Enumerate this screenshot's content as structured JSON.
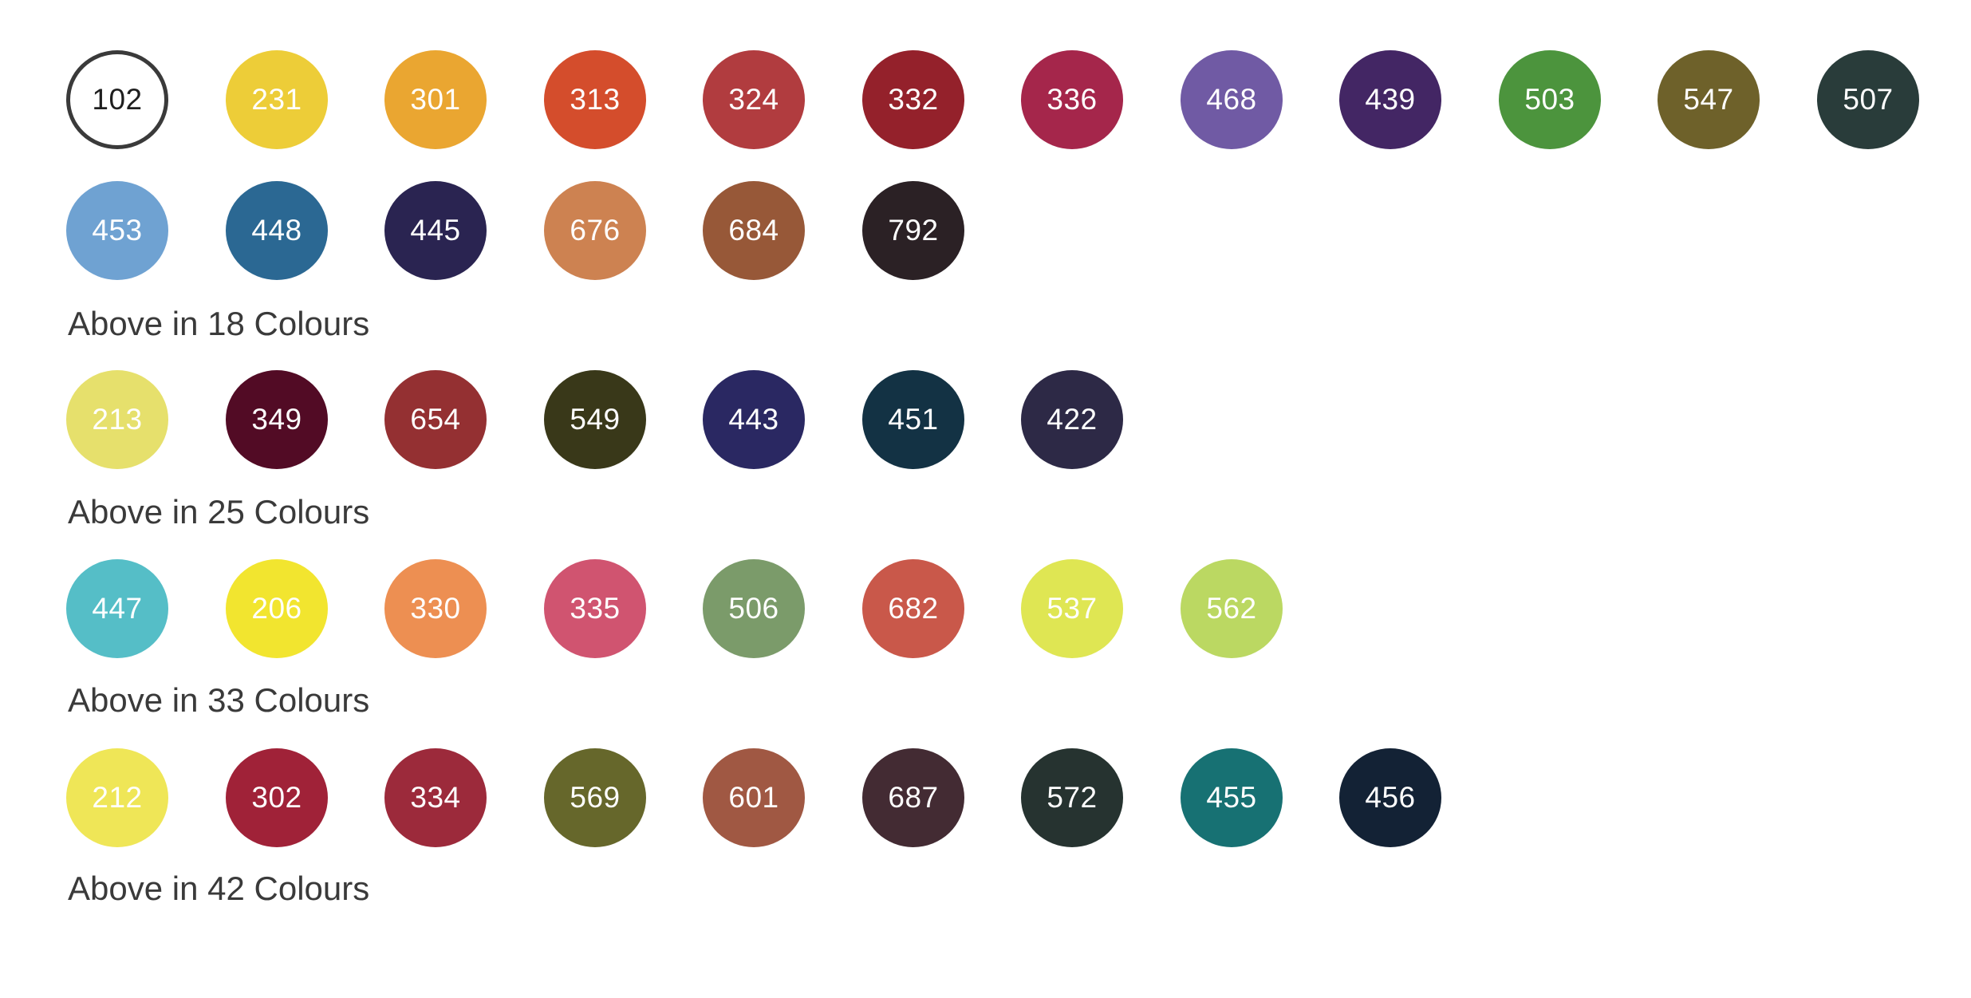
{
  "groups": [
    {
      "caption": "Above in 18 Colours",
      "rows": [
        [
          {
            "code": "102",
            "color": "#ffffff",
            "outlined": true
          },
          {
            "code": "231",
            "color": "#edcd38"
          },
          {
            "code": "301",
            "color": "#eaa631"
          },
          {
            "code": "313",
            "color": "#d44d2c"
          },
          {
            "code": "324",
            "color": "#b13c3f"
          },
          {
            "code": "332",
            "color": "#94212b"
          },
          {
            "code": "336",
            "color": "#a5264b"
          },
          {
            "code": "468",
            "color": "#705aa4"
          },
          {
            "code": "439",
            "color": "#432664"
          },
          {
            "code": "503",
            "color": "#4c943d"
          },
          {
            "code": "547",
            "color": "#6e612a"
          },
          {
            "code": "507",
            "color": "#293c3a"
          }
        ],
        [
          {
            "code": "453",
            "color": "#6fa2d2"
          },
          {
            "code": "448",
            "color": "#2b6893"
          },
          {
            "code": "445",
            "color": "#2a2451"
          },
          {
            "code": "676",
            "color": "#cd8251"
          },
          {
            "code": "684",
            "color": "#975838"
          },
          {
            "code": "792",
            "color": "#2b2125"
          }
        ]
      ]
    },
    {
      "caption": "Above in 25 Colours",
      "rows": [
        [
          {
            "code": "213",
            "color": "#e6e06c"
          },
          {
            "code": "349",
            "color": "#520b25"
          },
          {
            "code": "654",
            "color": "#943032"
          },
          {
            "code": "549",
            "color": "#393819"
          },
          {
            "code": "443",
            "color": "#2a2862"
          },
          {
            "code": "451",
            "color": "#133244"
          },
          {
            "code": "422",
            "color": "#2d2946"
          }
        ]
      ]
    },
    {
      "caption": "Above in 33 Colours",
      "rows": [
        [
          {
            "code": "447",
            "color": "#55bec7"
          },
          {
            "code": "206",
            "color": "#f2e52f"
          },
          {
            "code": "330",
            "color": "#ed8f52"
          },
          {
            "code": "335",
            "color": "#d05470"
          },
          {
            "code": "506",
            "color": "#7b9b6a"
          },
          {
            "code": "682",
            "color": "#c9584a"
          },
          {
            "code": "537",
            "color": "#dfe653"
          },
          {
            "code": "562",
            "color": "#bbd862"
          }
        ]
      ]
    },
    {
      "caption": "Above in 42 Colours",
      "rows": [
        [
          {
            "code": "212",
            "color": "#efe657"
          },
          {
            "code": "302",
            "color": "#a02238"
          },
          {
            "code": "334",
            "color": "#9c2a3b"
          },
          {
            "code": "569",
            "color": "#66672b"
          },
          {
            "code": "601",
            "color": "#a05843"
          },
          {
            "code": "687",
            "color": "#432b33"
          },
          {
            "code": "572",
            "color": "#263330"
          },
          {
            "code": "455",
            "color": "#177173"
          },
          {
            "code": "456",
            "color": "#132235"
          }
        ]
      ]
    }
  ]
}
